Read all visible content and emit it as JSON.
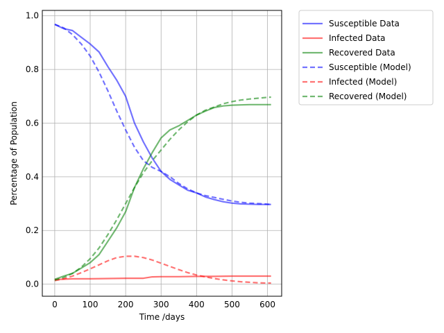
{
  "chart_data": {
    "type": "line",
    "xlabel": "Time /days",
    "ylabel": "Percentage of Population",
    "xlim": [
      -35,
      640
    ],
    "ylim": [
      -0.045,
      1.02
    ],
    "x_ticks": [
      0,
      100,
      200,
      300,
      400,
      500,
      600
    ],
    "y_ticks": [
      0.0,
      0.2,
      0.4,
      0.6,
      0.8,
      1.0
    ],
    "x_tick_labels": [
      "0",
      "100",
      "200",
      "300",
      "400",
      "500",
      "600"
    ],
    "y_tick_labels": [
      "0.0",
      "0.2",
      "0.4",
      "0.6",
      "0.8",
      "1.0"
    ],
    "grid": true,
    "legend_placement": "outside-upper-right",
    "series": [
      {
        "name": "Susceptible Data",
        "color": "#0000ff",
        "style": "solid",
        "x": [
          0,
          25,
          50,
          75,
          100,
          125,
          150,
          175,
          200,
          225,
          250,
          275,
          300,
          325,
          350,
          375,
          400,
          425,
          450,
          475,
          500,
          525,
          550,
          575,
          600,
          610
        ],
        "y": [
          0.968,
          0.952,
          0.945,
          0.92,
          0.895,
          0.865,
          0.81,
          0.76,
          0.7,
          0.6,
          0.53,
          0.47,
          0.42,
          0.39,
          0.37,
          0.35,
          0.34,
          0.325,
          0.315,
          0.307,
          0.302,
          0.299,
          0.298,
          0.297,
          0.297,
          0.297
        ]
      },
      {
        "name": "Infected Data",
        "color": "#ff0000",
        "style": "solid",
        "x": [
          0,
          50,
          100,
          150,
          200,
          250,
          275,
          300,
          350,
          400,
          450,
          500,
          550,
          600,
          610
        ],
        "y": [
          0.017,
          0.02,
          0.02,
          0.021,
          0.022,
          0.022,
          0.027,
          0.028,
          0.028,
          0.029,
          0.029,
          0.03,
          0.03,
          0.03,
          0.03
        ]
      },
      {
        "name": "Recovered Data",
        "color": "#008000",
        "style": "solid",
        "x": [
          0,
          25,
          50,
          75,
          100,
          125,
          150,
          175,
          200,
          225,
          250,
          275,
          300,
          325,
          350,
          375,
          400,
          425,
          450,
          475,
          500,
          525,
          550,
          575,
          600,
          610
        ],
        "y": [
          0.018,
          0.03,
          0.04,
          0.06,
          0.08,
          0.11,
          0.16,
          0.21,
          0.27,
          0.36,
          0.43,
          0.49,
          0.545,
          0.575,
          0.59,
          0.61,
          0.63,
          0.645,
          0.658,
          0.664,
          0.667,
          0.668,
          0.669,
          0.669,
          0.669,
          0.669
        ]
      },
      {
        "name": "Susceptible (Model)",
        "color": "#0000ff",
        "style": "dashed",
        "x": [
          0,
          25,
          50,
          75,
          100,
          125,
          150,
          175,
          200,
          225,
          250,
          275,
          300,
          325,
          350,
          375,
          400,
          425,
          450,
          475,
          500,
          525,
          550,
          575,
          600,
          610
        ],
        "y": [
          0.968,
          0.955,
          0.93,
          0.895,
          0.85,
          0.79,
          0.72,
          0.645,
          0.575,
          0.51,
          0.46,
          0.435,
          0.42,
          0.4,
          0.375,
          0.355,
          0.34,
          0.33,
          0.323,
          0.316,
          0.31,
          0.305,
          0.302,
          0.3,
          0.298,
          0.297
        ]
      },
      {
        "name": "Infected (Model)",
        "color": "#ff0000",
        "style": "dashed",
        "x": [
          0,
          25,
          50,
          75,
          100,
          125,
          150,
          175,
          200,
          225,
          250,
          275,
          300,
          325,
          350,
          375,
          400,
          425,
          450,
          475,
          500,
          525,
          550,
          575,
          600,
          610
        ],
        "y": [
          0.013,
          0.02,
          0.03,
          0.043,
          0.057,
          0.072,
          0.087,
          0.099,
          0.104,
          0.104,
          0.099,
          0.09,
          0.078,
          0.066,
          0.054,
          0.043,
          0.034,
          0.027,
          0.021,
          0.016,
          0.012,
          0.009,
          0.007,
          0.005,
          0.004,
          0.004
        ]
      },
      {
        "name": "Recovered (Model)",
        "color": "#008000",
        "style": "dashed",
        "x": [
          0,
          25,
          50,
          75,
          100,
          125,
          150,
          175,
          200,
          225,
          250,
          275,
          300,
          325,
          350,
          375,
          400,
          425,
          450,
          475,
          500,
          525,
          550,
          575,
          600,
          610
        ],
        "y": [
          0.015,
          0.025,
          0.04,
          0.063,
          0.095,
          0.135,
          0.185,
          0.24,
          0.3,
          0.36,
          0.415,
          0.46,
          0.5,
          0.54,
          0.575,
          0.605,
          0.63,
          0.648,
          0.66,
          0.672,
          0.68,
          0.686,
          0.69,
          0.693,
          0.696,
          0.697
        ]
      }
    ]
  }
}
